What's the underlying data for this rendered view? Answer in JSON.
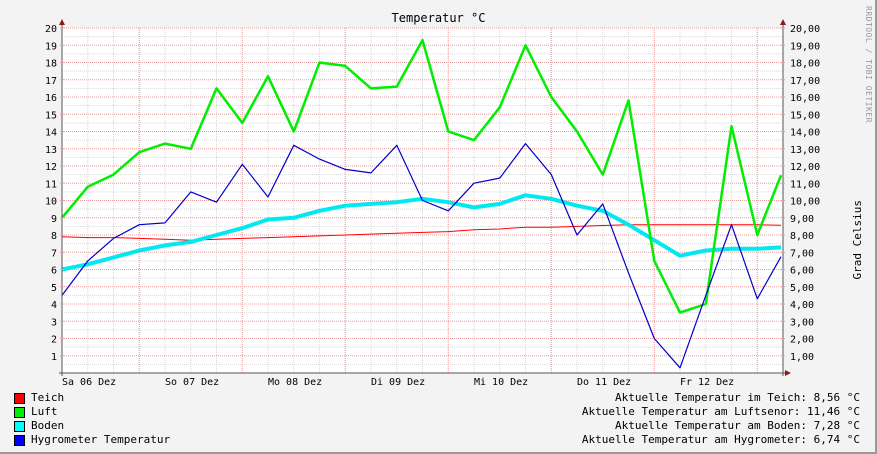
{
  "chart_data": {
    "type": "line",
    "title": "Temperatur °C",
    "xlabel": "",
    "ylabel": "Grad Celsius",
    "ylim": [
      0,
      20
    ],
    "grid": true,
    "watermark": "RRDTOOL / TOBI OETIKER",
    "y_ticks_left": [
      "1",
      "2",
      "3",
      "4",
      "5",
      "6",
      "7",
      "8",
      "9",
      "10",
      "11",
      "12",
      "13",
      "14",
      "15",
      "16",
      "17",
      "18",
      "19",
      "20"
    ],
    "y_ticks_right": [
      "1,00",
      "2,00",
      "3,00",
      "4,00",
      "5,00",
      "6,00",
      "7,00",
      "8,00",
      "9,00",
      "10,00",
      "11,00",
      "12,00",
      "13,00",
      "14,00",
      "15,00",
      "16,00",
      "17,00",
      "18,00",
      "19,00",
      "20,00"
    ],
    "x_ticks": [
      "Sa 06 Dez",
      "So 07 Dez",
      "Mo 08 Dez",
      "Di 09 Dez",
      "Mi 10 Dez",
      "Do 11 Dez",
      "Fr 12 Dez"
    ],
    "x": [
      0,
      0.25,
      0.5,
      0.75,
      1,
      1.25,
      1.5,
      1.75,
      2,
      2.25,
      2.5,
      2.75,
      3,
      3.25,
      3.5,
      3.75,
      4,
      4.25,
      4.5,
      4.75,
      5,
      5.25,
      5.5,
      5.75,
      6,
      6.25,
      6.5,
      6.75,
      7
    ],
    "series": [
      {
        "name": "Teich",
        "color": "#ff0000",
        "values": [
          7.9,
          7.85,
          7.85,
          7.8,
          7.75,
          7.7,
          7.75,
          7.8,
          7.85,
          7.9,
          7.95,
          8.0,
          8.05,
          8.1,
          8.15,
          8.2,
          8.3,
          8.35,
          8.45,
          8.45,
          8.5,
          8.55,
          8.6,
          8.6,
          8.6,
          8.6,
          8.6,
          8.6,
          8.56
        ]
      },
      {
        "name": "Luft",
        "color": "#00ee00",
        "values": [
          9.0,
          10.8,
          11.5,
          12.8,
          13.3,
          13.0,
          16.5,
          14.5,
          17.2,
          14.0,
          18.0,
          17.8,
          16.5,
          16.6,
          19.3,
          14.0,
          13.5,
          15.4,
          19.0,
          16.0,
          14.0,
          11.5,
          15.8,
          6.5,
          3.5,
          4.0,
          14.3,
          8.0,
          11.46
        ]
      },
      {
        "name": "Boden",
        "color": "#00e8f0",
        "values": [
          6.0,
          6.3,
          6.7,
          7.1,
          7.4,
          7.6,
          8.0,
          8.4,
          8.9,
          9.0,
          9.4,
          9.7,
          9.8,
          9.9,
          10.1,
          9.9,
          9.6,
          9.8,
          10.3,
          10.1,
          9.7,
          9.4,
          8.6,
          7.7,
          6.8,
          7.1,
          7.2,
          7.2,
          7.28
        ]
      },
      {
        "name": "Hygrometer Temperatur",
        "color": "#0000cc",
        "values": [
          4.5,
          6.5,
          7.8,
          8.6,
          8.7,
          10.5,
          9.9,
          12.1,
          10.2,
          13.2,
          12.4,
          11.8,
          11.6,
          13.2,
          10.0,
          9.4,
          11.0,
          11.3,
          13.3,
          11.5,
          8.0,
          9.8,
          5.8,
          2.0,
          0.3,
          4.5,
          8.6,
          4.3,
          6.74
        ]
      }
    ]
  },
  "header": {
    "title": "Temperatur °C",
    "watermark": "RRDTOOL / TOBI OETIKER",
    "y_axis_label": "Grad Celsius"
  },
  "legend": {
    "items": [
      {
        "label": "Teich",
        "color": "#ff0000"
      },
      {
        "label": "Luft",
        "color": "#00ee00"
      },
      {
        "label": "Boden",
        "color": "#00ffff"
      },
      {
        "label": "Hygrometer Temperatur",
        "color": "#0000ff"
      }
    ]
  },
  "current": {
    "lines": [
      "Aktuelle Temperatur im Teich: 8,56 °C",
      "Aktuelle Temperatur am Luftsenor: 11,46 °C",
      "Aktuelle Temperatur am Boden: 7,28 °C",
      "Aktuelle Temperatur am Hygrometer: 6,74 °C"
    ]
  }
}
